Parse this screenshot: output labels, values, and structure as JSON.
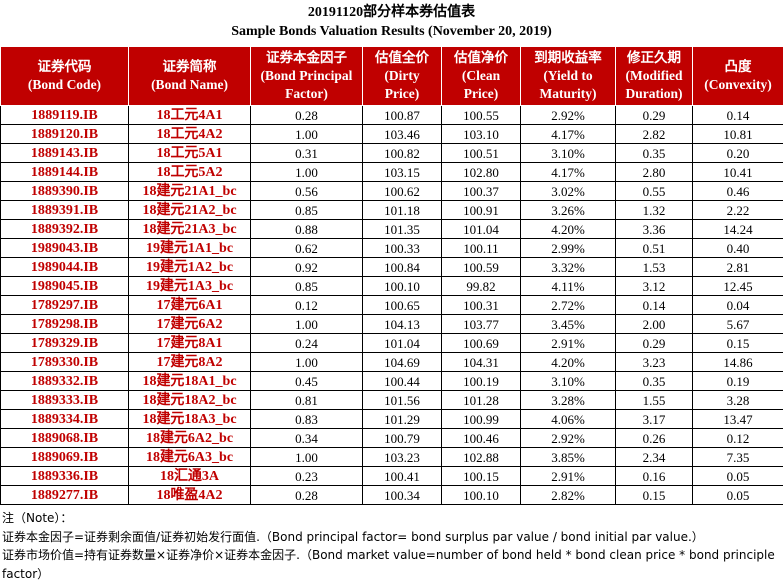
{
  "title": "20191120部分样本券估值表",
  "subtitle": "Sample Bonds Valuation Results (November 20, 2019)",
  "table": {
    "header": [
      [
        "证券代码",
        "(Bond Code)"
      ],
      [
        "证券简称",
        "(Bond Name)"
      ],
      [
        "证券本金因子",
        "(Bond Principal",
        "Factor)"
      ],
      [
        "估值全价",
        "(Dirty",
        "Price)"
      ],
      [
        "估值净价",
        "(Clean",
        "Price)"
      ],
      [
        "到期收益率",
        "(Yield to",
        "Maturity)"
      ],
      [
        "修正久期",
        "(Modified",
        "Duration)"
      ],
      [
        "凸度",
        "(Convexity)"
      ]
    ],
    "rows": [
      [
        "1889119.IB",
        "18工元4A1",
        "0.28",
        "100.87",
        "100.55",
        "2.92%",
        "0.29",
        "0.14"
      ],
      [
        "1889120.IB",
        "18工元4A2",
        "1.00",
        "103.46",
        "103.10",
        "4.17%",
        "2.82",
        "10.81"
      ],
      [
        "1889143.IB",
        "18工元5A1",
        "0.31",
        "100.82",
        "100.51",
        "3.10%",
        "0.35",
        "0.20"
      ],
      [
        "1889144.IB",
        "18工元5A2",
        "1.00",
        "103.15",
        "102.80",
        "4.17%",
        "2.80",
        "10.41"
      ],
      [
        "1889390.IB",
        "18建元21A1_bc",
        "0.56",
        "100.62",
        "100.37",
        "3.02%",
        "0.55",
        "0.46"
      ],
      [
        "1889391.IB",
        "18建元21A2_bc",
        "0.85",
        "101.18",
        "100.91",
        "3.26%",
        "1.32",
        "2.22"
      ],
      [
        "1889392.IB",
        "18建元21A3_bc",
        "0.88",
        "101.35",
        "101.04",
        "4.20%",
        "3.36",
        "14.24"
      ],
      [
        "1989043.IB",
        "19建元1A1_bc",
        "0.62",
        "100.33",
        "100.11",
        "2.99%",
        "0.51",
        "0.40"
      ],
      [
        "1989044.IB",
        "19建元1A2_bc",
        "0.92",
        "100.84",
        "100.59",
        "3.32%",
        "1.53",
        "2.81"
      ],
      [
        "1989045.IB",
        "19建元1A3_bc",
        "0.85",
        "100.10",
        "99.82",
        "4.11%",
        "3.12",
        "12.45"
      ],
      [
        "1789297.IB",
        "17建元6A1",
        "0.12",
        "100.65",
        "100.31",
        "2.72%",
        "0.14",
        "0.04"
      ],
      [
        "1789298.IB",
        "17建元6A2",
        "1.00",
        "104.13",
        "103.77",
        "3.45%",
        "2.00",
        "5.67"
      ],
      [
        "1789329.IB",
        "17建元8A1",
        "0.24",
        "101.04",
        "100.69",
        "2.91%",
        "0.29",
        "0.15"
      ],
      [
        "1789330.IB",
        "17建元8A2",
        "1.00",
        "104.69",
        "104.31",
        "4.20%",
        "3.23",
        "14.86"
      ],
      [
        "1889332.IB",
        "18建元18A1_bc",
        "0.45",
        "100.44",
        "100.19",
        "3.10%",
        "0.35",
        "0.19"
      ],
      [
        "1889333.IB",
        "18建元18A2_bc",
        "0.81",
        "101.56",
        "101.28",
        "3.28%",
        "1.55",
        "3.28"
      ],
      [
        "1889334.IB",
        "18建元18A3_bc",
        "0.83",
        "101.29",
        "100.99",
        "4.06%",
        "3.17",
        "13.47"
      ],
      [
        "1889068.IB",
        "18建元6A2_bc",
        "0.34",
        "100.79",
        "100.46",
        "2.92%",
        "0.26",
        "0.12"
      ],
      [
        "1889069.IB",
        "18建元6A3_bc",
        "1.00",
        "103.23",
        "102.88",
        "3.85%",
        "2.34",
        "7.35"
      ],
      [
        "1889336.IB",
        "18汇通3A",
        "0.23",
        "100.41",
        "100.15",
        "2.91%",
        "0.16",
        "0.05"
      ],
      [
        "1889277.IB",
        "18唯盈4A2",
        "0.28",
        "100.34",
        "100.10",
        "2.82%",
        "0.15",
        "0.05"
      ]
    ]
  },
  "notes": {
    "label": "注（Note）：",
    "lines": [
      "证券本金因子=证券剩余面值/证券初始发行面值.（Bond principal factor= bond surplus par value / bond initial par value.）",
      "证券市场价值=持有证券数量×证券净价×证券本金因子.（Bond market value=number of bond held * bond clean price * bond principle factor）"
    ]
  }
}
